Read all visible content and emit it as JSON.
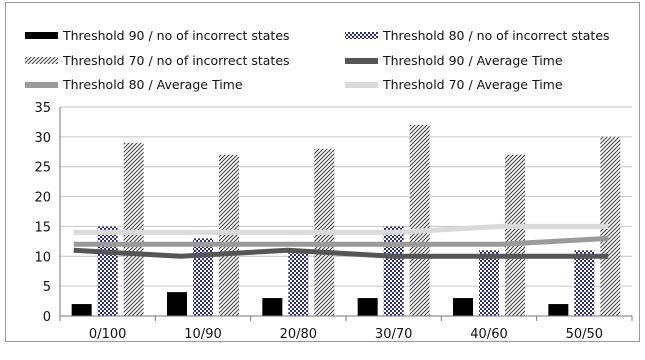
{
  "chart_data": {
    "type": "bar",
    "title": "",
    "xlabel": "",
    "ylabel": "",
    "ylim": [
      0,
      35
    ],
    "yticks": [
      0,
      5,
      10,
      15,
      20,
      25,
      30,
      35
    ],
    "grid": true,
    "legend_placement": "top",
    "categories": [
      "0/100",
      "10/90",
      "20/80",
      "30/70",
      "40/60",
      "50/50"
    ],
    "series": [
      {
        "name": "Threshold 90 / no of incorrect states",
        "kind": "bar",
        "pattern": "solid",
        "color": "#000000",
        "values": [
          2,
          4,
          3,
          3,
          3,
          2
        ]
      },
      {
        "name": "Threshold 80 / no of incorrect states",
        "kind": "bar",
        "pattern": "crosshatch",
        "color": "#2b2b8c",
        "values": [
          15,
          13,
          11,
          15,
          11,
          11
        ]
      },
      {
        "name": "Threshold 70 / no of incorrect states",
        "kind": "bar",
        "pattern": "diagonal",
        "color": "#555555",
        "values": [
          29,
          27,
          28,
          32,
          27,
          30
        ]
      },
      {
        "name": "Threshold 90 / Average Time",
        "kind": "line",
        "color": "#555555",
        "values": [
          11,
          10,
          11,
          10,
          10,
          10
        ]
      },
      {
        "name": "Threshold 80 / Average Time",
        "kind": "line",
        "color": "#9a9a9a",
        "values": [
          12,
          12,
          12,
          12,
          12,
          13
        ]
      },
      {
        "name": "Threshold 70 / Average Time",
        "kind": "line",
        "color": "#dadada",
        "values": [
          14,
          14,
          14,
          14,
          15,
          15
        ]
      }
    ]
  }
}
